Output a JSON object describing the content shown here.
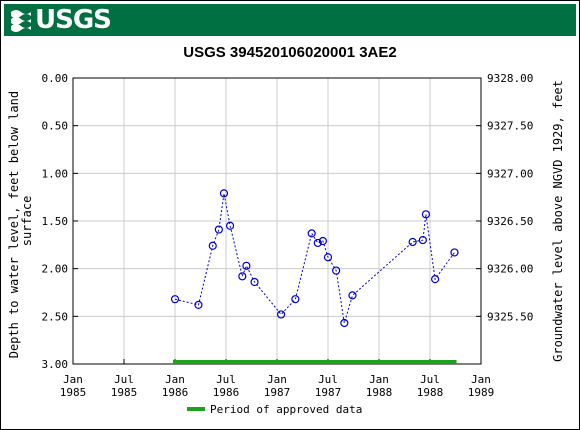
{
  "header": {
    "agency": "USGS"
  },
  "chart_data": {
    "type": "scatter",
    "title": "USGS 394520106020001 3AE2",
    "ylabel_left_lines": [
      "Depth to water level, feet below land",
      "surface"
    ],
    "ylabel_right": "Groundwater level above NGVD 1929, feet",
    "y_left_ticks": [
      "0.00",
      "0.50",
      "1.00",
      "1.50",
      "2.00",
      "2.50",
      "3.00"
    ],
    "y_right_ticks": [
      "9328.00",
      "9327.50",
      "9327.00",
      "9326.50",
      "9326.00",
      "9325.50"
    ],
    "y_left_range": [
      0.0,
      3.0
    ],
    "y_right_range": [
      9328.0,
      9325.0
    ],
    "x_ticks": [
      {
        "month": "Jan",
        "year": "1985",
        "t": 1985.0
      },
      {
        "month": "Jul",
        "year": "1985",
        "t": 1985.5
      },
      {
        "month": "Jan",
        "year": "1986",
        "t": 1986.0
      },
      {
        "month": "Jul",
        "year": "1986",
        "t": 1986.5
      },
      {
        "month": "Jan",
        "year": "1987",
        "t": 1987.0
      },
      {
        "month": "Jul",
        "year": "1987",
        "t": 1987.5
      },
      {
        "month": "Jan",
        "year": "1988",
        "t": 1988.0
      },
      {
        "month": "Jul",
        "year": "1988",
        "t": 1988.5
      },
      {
        "month": "Jan",
        "year": "1989",
        "t": 1989.0
      }
    ],
    "x_range": [
      1985.0,
      1989.0
    ],
    "grid": true,
    "series": [
      {
        "points": [
          {
            "t": 1986.0,
            "y": 2.32
          },
          {
            "t": 1986.23,
            "y": 2.38
          },
          {
            "t": 1986.37,
            "y": 1.76
          },
          {
            "t": 1986.43,
            "y": 1.59
          },
          {
            "t": 1986.48,
            "y": 1.21
          },
          {
            "t": 1986.54,
            "y": 1.55
          },
          {
            "t": 1986.66,
            "y": 2.08
          },
          {
            "t": 1986.7,
            "y": 1.97
          },
          {
            "t": 1986.78,
            "y": 2.14
          },
          {
            "t": 1987.04,
            "y": 2.48
          },
          {
            "t": 1987.18,
            "y": 2.32
          },
          {
            "t": 1987.34,
            "y": 1.63
          },
          {
            "t": 1987.4,
            "y": 1.73
          },
          {
            "t": 1987.45,
            "y": 1.71
          },
          {
            "t": 1987.5,
            "y": 1.88
          },
          {
            "t": 1987.58,
            "y": 2.02
          },
          {
            "t": 1987.66,
            "y": 2.57
          },
          {
            "t": 1987.74,
            "y": 2.28
          },
          {
            "t": 1988.33,
            "y": 1.72
          },
          {
            "t": 1988.43,
            "y": 1.7
          },
          {
            "t": 1988.46,
            "y": 1.43
          },
          {
            "t": 1988.55,
            "y": 2.11
          },
          {
            "t": 1988.74,
            "y": 1.83
          }
        ],
        "color": "#0000cc"
      }
    ],
    "approved_period": {
      "start": 1985.98,
      "end": 1988.76,
      "color": "#1aa31a"
    },
    "legend": {
      "label": "Period of approved data",
      "placement": "bottom-center"
    }
  }
}
